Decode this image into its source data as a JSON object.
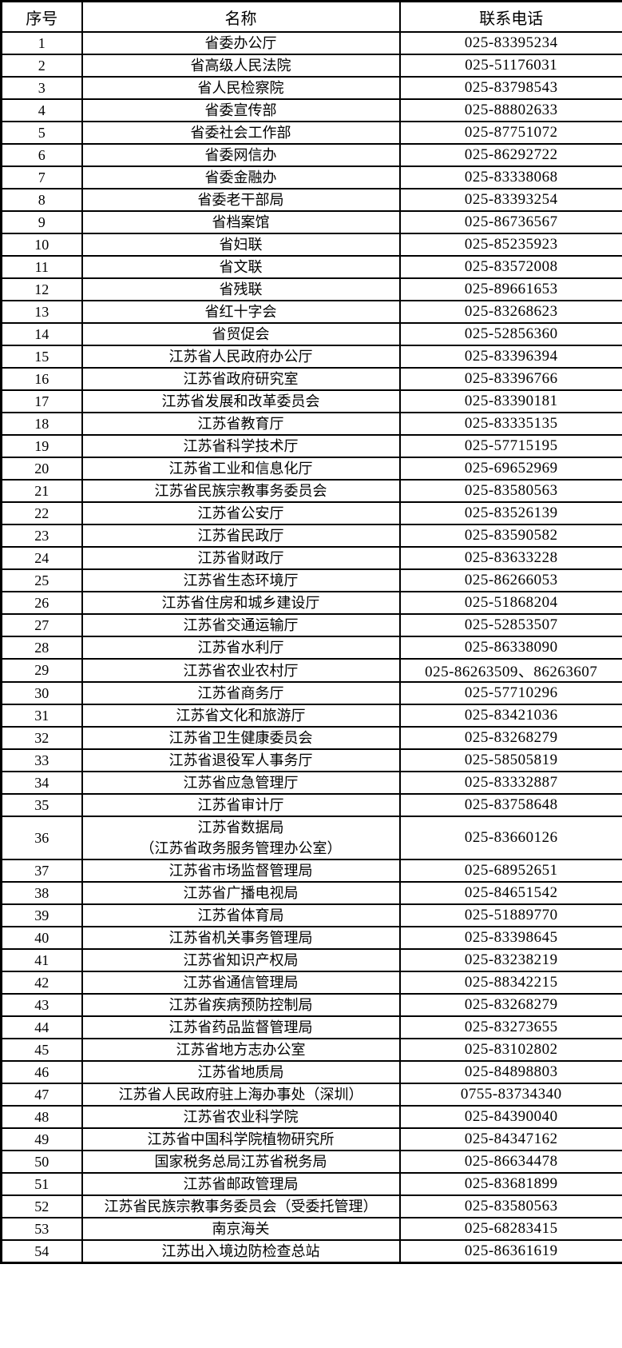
{
  "page": {
    "background_color": "#ffffff",
    "border_color": "#000000",
    "text_color": "#000000"
  },
  "table": {
    "headers": [
      "序号",
      "名称",
      "联系电话"
    ],
    "rows": [
      {
        "no": "1",
        "name": "省委办公厅",
        "phone": "025-83395234"
      },
      {
        "no": "2",
        "name": "省高级人民法院",
        "phone": "025-51176031"
      },
      {
        "no": "3",
        "name": "省人民检察院",
        "phone": "025-83798543"
      },
      {
        "no": "4",
        "name": "省委宣传部",
        "phone": "025-88802633"
      },
      {
        "no": "5",
        "name": "省委社会工作部",
        "phone": "025-87751072"
      },
      {
        "no": "6",
        "name": "省委网信办",
        "phone": "025-86292722"
      },
      {
        "no": "7",
        "name": "省委金融办",
        "phone": "025-83338068"
      },
      {
        "no": "8",
        "name": "省委老干部局",
        "phone": "025-83393254"
      },
      {
        "no": "9",
        "name": "省档案馆",
        "phone": "025-86736567"
      },
      {
        "no": "10",
        "name": "省妇联",
        "phone": "025-85235923"
      },
      {
        "no": "11",
        "name": "省文联",
        "phone": "025-83572008"
      },
      {
        "no": "12",
        "name": "省残联",
        "phone": "025-89661653"
      },
      {
        "no": "13",
        "name": "省红十字会",
        "phone": "025-83268623"
      },
      {
        "no": "14",
        "name": "省贸促会",
        "phone": "025-52856360"
      },
      {
        "no": "15",
        "name": "江苏省人民政府办公厅",
        "phone": "025-83396394"
      },
      {
        "no": "16",
        "name": "江苏省政府研究室",
        "phone": "025-83396766"
      },
      {
        "no": "17",
        "name": "江苏省发展和改革委员会",
        "phone": "025-83390181"
      },
      {
        "no": "18",
        "name": "江苏省教育厅",
        "phone": "025-83335135"
      },
      {
        "no": "19",
        "name": "江苏省科学技术厅",
        "phone": "025-57715195"
      },
      {
        "no": "20",
        "name": "江苏省工业和信息化厅",
        "phone": "025-69652969"
      },
      {
        "no": "21",
        "name": "江苏省民族宗教事务委员会",
        "phone": "025-83580563"
      },
      {
        "no": "22",
        "name": "江苏省公安厅",
        "phone": "025-83526139"
      },
      {
        "no": "23",
        "name": "江苏省民政厅",
        "phone": "025-83590582"
      },
      {
        "no": "24",
        "name": "江苏省财政厅",
        "phone": "025-83633228"
      },
      {
        "no": "25",
        "name": "江苏省生态环境厅",
        "phone": "025-86266053"
      },
      {
        "no": "26",
        "name": "江苏省住房和城乡建设厅",
        "phone": "025-51868204"
      },
      {
        "no": "27",
        "name": "江苏省交通运输厅",
        "phone": "025-52853507"
      },
      {
        "no": "28",
        "name": "江苏省水利厅",
        "phone": "025-86338090"
      },
      {
        "no": "29",
        "name": "江苏省农业农村厅",
        "phone": "025-86263509、86263607"
      },
      {
        "no": "30",
        "name": "江苏省商务厅",
        "phone": "025-57710296"
      },
      {
        "no": "31",
        "name": "江苏省文化和旅游厅",
        "phone": "025-83421036"
      },
      {
        "no": "32",
        "name": "江苏省卫生健康委员会",
        "phone": "025-83268279"
      },
      {
        "no": "33",
        "name": "江苏省退役军人事务厅",
        "phone": "025-58505819"
      },
      {
        "no": "34",
        "name": "江苏省应急管理厅",
        "phone": "025-83332887"
      },
      {
        "no": "35",
        "name": "江苏省审计厅",
        "phone": "025-83758648"
      },
      {
        "no": "36",
        "name": "江苏省数据局",
        "name2": "（江苏省政务服务管理办公室）",
        "phone": "025-83660126"
      },
      {
        "no": "37",
        "name": "江苏省市场监督管理局",
        "phone": "025-68952651"
      },
      {
        "no": "38",
        "name": "江苏省广播电视局",
        "phone": "025-84651542"
      },
      {
        "no": "39",
        "name": "江苏省体育局",
        "phone": "025-51889770"
      },
      {
        "no": "40",
        "name": "江苏省机关事务管理局",
        "phone": "025-83398645"
      },
      {
        "no": "41",
        "name": "江苏省知识产权局",
        "phone": "025-83238219"
      },
      {
        "no": "42",
        "name": "江苏省通信管理局",
        "phone": "025-88342215"
      },
      {
        "no": "43",
        "name": "江苏省疾病预防控制局",
        "phone": "025-83268279"
      },
      {
        "no": "44",
        "name": "江苏省药品监督管理局",
        "phone": "025-83273655"
      },
      {
        "no": "45",
        "name": "江苏省地方志办公室",
        "phone": "025-83102802"
      },
      {
        "no": "46",
        "name": "江苏省地质局",
        "phone": "025-84898803"
      },
      {
        "no": "47",
        "name": "江苏省人民政府驻上海办事处（深圳）",
        "phone": "0755-83734340"
      },
      {
        "no": "48",
        "name": "江苏省农业科学院",
        "phone": "025-84390040"
      },
      {
        "no": "49",
        "name": "江苏省中国科学院植物研究所",
        "phone": "025-84347162"
      },
      {
        "no": "50",
        "name": "国家税务总局江苏省税务局",
        "phone": "025-86634478"
      },
      {
        "no": "51",
        "name": "江苏省邮政管理局",
        "phone": "025-83681899"
      },
      {
        "no": "52",
        "name": "江苏省民族宗教事务委员会（受委托管理）",
        "phone": "025-83580563"
      },
      {
        "no": "53",
        "name": "南京海关",
        "phone": "025-68283415"
      },
      {
        "no": "54",
        "name": "江苏出入境边防检查总站",
        "phone": "025-86361619"
      }
    ]
  }
}
